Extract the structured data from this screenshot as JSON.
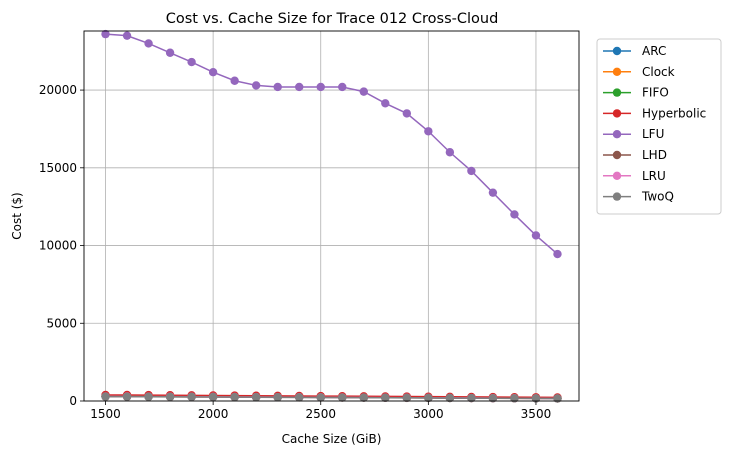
{
  "chart_data": {
    "type": "line",
    "title": "Cost vs. Cache Size for Trace 012 Cross-Cloud",
    "xlabel": "Cache Size (GiB)",
    "ylabel": "Cost ($)",
    "xlim": [
      1400,
      3700
    ],
    "ylim": [
      0,
      23800
    ],
    "xticks": [
      1500,
      2000,
      2500,
      3000,
      3500
    ],
    "yticks": [
      0,
      5000,
      10000,
      15000,
      20000
    ],
    "grid": true,
    "legend_position": "outside-right",
    "x": [
      1500,
      1600,
      1700,
      1800,
      1900,
      2000,
      2100,
      2200,
      2300,
      2400,
      2500,
      2600,
      2700,
      2800,
      2900,
      3000,
      3100,
      3200,
      3300,
      3400,
      3500,
      3600
    ],
    "series": [
      {
        "name": "ARC",
        "color": "#1f77b4",
        "values": [
          300,
          295,
          290,
          285,
          280,
          272,
          265,
          258,
          252,
          246,
          240,
          234,
          228,
          222,
          216,
          210,
          203,
          196,
          189,
          182,
          175,
          168
        ]
      },
      {
        "name": "Clock",
        "color": "#ff7f0e",
        "values": [
          310,
          305,
          300,
          294,
          288,
          281,
          274,
          267,
          260,
          254,
          248,
          242,
          236,
          229,
          222,
          215,
          208,
          201,
          194,
          187,
          180,
          173
        ]
      },
      {
        "name": "FIFO",
        "color": "#2ca02c",
        "values": [
          305,
          300,
          295,
          289,
          283,
          276,
          269,
          262,
          256,
          250,
          244,
          238,
          232,
          225,
          218,
          211,
          204,
          197,
          190,
          183,
          176,
          169
        ]
      },
      {
        "name": "Hyperbolic",
        "color": "#d62728",
        "values": [
          390,
          385,
          378,
          370,
          362,
          354,
          346,
          338,
          331,
          324,
          317,
          310,
          303,
          295,
          287,
          279,
          271,
          263,
          255,
          247,
          239,
          230
        ]
      },
      {
        "name": "LFU",
        "color": "#9467bd",
        "values": [
          23600,
          23500,
          23000,
          22400,
          21800,
          21150,
          20600,
          20300,
          20200,
          20200,
          20200,
          20200,
          19900,
          19150,
          18500,
          17350,
          16000,
          14800,
          13400,
          12000,
          10650,
          9450
        ]
      },
      {
        "name": "LHD",
        "color": "#8c564b",
        "values": [
          280,
          275,
          270,
          265,
          260,
          254,
          248,
          242,
          236,
          230,
          224,
          218,
          212,
          206,
          200,
          194,
          188,
          182,
          176,
          170,
          164,
          158
        ]
      },
      {
        "name": "LRU",
        "color": "#e377c2",
        "values": [
          295,
          290,
          285,
          280,
          275,
          268,
          261,
          254,
          248,
          242,
          236,
          230,
          224,
          218,
          212,
          206,
          199,
          192,
          185,
          178,
          171,
          164
        ]
      },
      {
        "name": "TwoQ",
        "color": "#7f7f7f",
        "values": [
          285,
          280,
          275,
          270,
          265,
          259,
          253,
          247,
          241,
          235,
          229,
          223,
          217,
          211,
          205,
          199,
          193,
          187,
          181,
          175,
          169,
          163
        ]
      }
    ]
  }
}
